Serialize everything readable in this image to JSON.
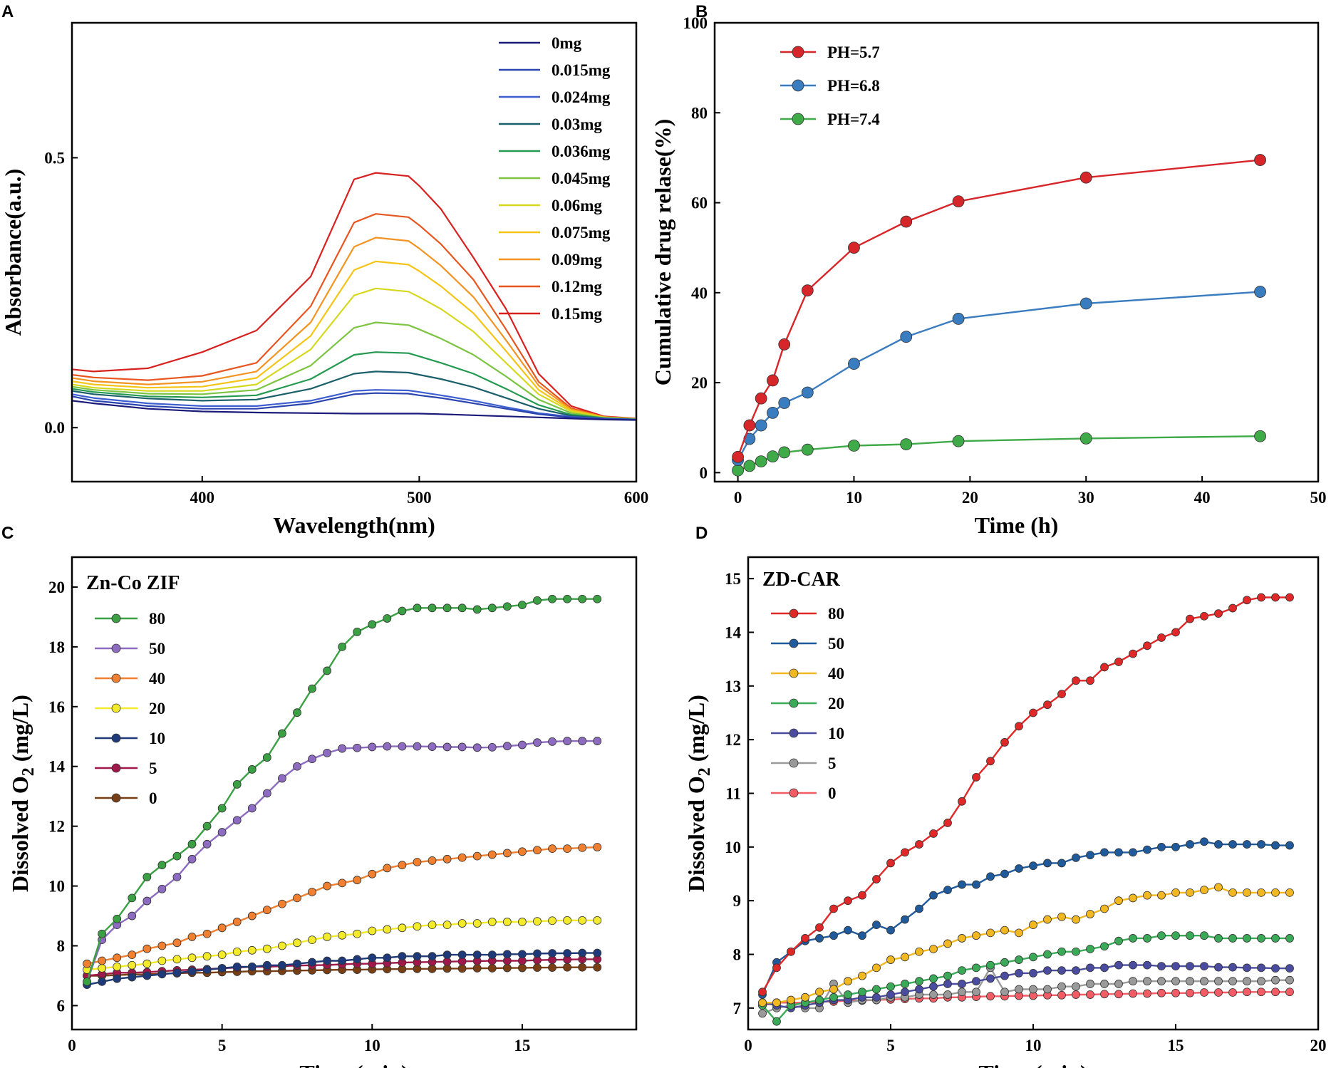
{
  "chart_data": [
    {
      "panel": "A",
      "type": "line",
      "title": "",
      "xlabel": "Wavelength(nm)",
      "ylabel": "Absorbance(a.u.)",
      "xlim": [
        340,
        600
      ],
      "ylim": [
        -0.1,
        0.75
      ],
      "xticks": [
        400,
        500,
        600
      ],
      "yticks": [
        0.0,
        0.5
      ],
      "ytick_labels": [
        "0.0",
        "0.5"
      ],
      "legend_position": "top-right",
      "x": [
        340,
        350,
        375,
        400,
        425,
        450,
        470,
        480,
        495,
        500,
        510,
        525,
        540,
        555,
        570,
        585,
        600
      ],
      "series": [
        {
          "name": "0mg",
          "color": "#1a1a7a",
          "values": [
            0.05,
            0.045,
            0.035,
            0.03,
            0.028,
            0.027,
            0.026,
            0.026,
            0.026,
            0.026,
            0.025,
            0.023,
            0.021,
            0.019,
            0.017,
            0.015,
            0.014
          ]
        },
        {
          "name": "0.015mg",
          "color": "#2a45b0",
          "values": [
            0.058,
            0.05,
            0.04,
            0.035,
            0.035,
            0.045,
            0.062,
            0.064,
            0.063,
            0.06,
            0.055,
            0.045,
            0.035,
            0.025,
            0.019,
            0.016,
            0.015
          ]
        },
        {
          "name": "0.024mg",
          "color": "#3d5fd0",
          "values": [
            0.062,
            0.055,
            0.045,
            0.04,
            0.04,
            0.05,
            0.068,
            0.07,
            0.069,
            0.066,
            0.06,
            0.05,
            0.038,
            0.027,
            0.02,
            0.017,
            0.015
          ]
        },
        {
          "name": "0.03mg",
          "color": "#1b5f6a",
          "values": [
            0.068,
            0.062,
            0.054,
            0.05,
            0.052,
            0.072,
            0.1,
            0.104,
            0.102,
            0.098,
            0.09,
            0.075,
            0.055,
            0.035,
            0.022,
            0.017,
            0.015
          ]
        },
        {
          "name": "0.036mg",
          "color": "#249a50",
          "values": [
            0.072,
            0.066,
            0.058,
            0.056,
            0.06,
            0.09,
            0.135,
            0.14,
            0.138,
            0.132,
            0.12,
            0.1,
            0.072,
            0.042,
            0.024,
            0.018,
            0.015
          ]
        },
        {
          "name": "0.045mg",
          "color": "#7cc442",
          "values": [
            0.076,
            0.07,
            0.063,
            0.062,
            0.07,
            0.115,
            0.185,
            0.195,
            0.19,
            0.182,
            0.165,
            0.135,
            0.095,
            0.052,
            0.027,
            0.018,
            0.016
          ]
        },
        {
          "name": "0.06mg",
          "color": "#d6d820",
          "values": [
            0.08,
            0.074,
            0.068,
            0.068,
            0.08,
            0.145,
            0.245,
            0.258,
            0.252,
            0.242,
            0.22,
            0.178,
            0.12,
            0.062,
            0.03,
            0.019,
            0.016
          ]
        },
        {
          "name": "0.075mg",
          "color": "#f5c418",
          "values": [
            0.086,
            0.08,
            0.074,
            0.076,
            0.092,
            0.17,
            0.292,
            0.308,
            0.302,
            0.29,
            0.262,
            0.212,
            0.142,
            0.07,
            0.032,
            0.019,
            0.016
          ]
        },
        {
          "name": "0.09mg",
          "color": "#f29322",
          "values": [
            0.092,
            0.086,
            0.08,
            0.085,
            0.104,
            0.195,
            0.335,
            0.352,
            0.346,
            0.332,
            0.3,
            0.242,
            0.162,
            0.078,
            0.034,
            0.02,
            0.016
          ]
        },
        {
          "name": "0.12mg",
          "color": "#e8561f",
          "values": [
            0.098,
            0.093,
            0.088,
            0.096,
            0.12,
            0.225,
            0.38,
            0.396,
            0.39,
            0.375,
            0.34,
            0.274,
            0.182,
            0.085,
            0.036,
            0.02,
            0.016
          ]
        },
        {
          "name": "0.15mg",
          "color": "#d7211f",
          "values": [
            0.108,
            0.104,
            0.11,
            0.14,
            0.18,
            0.28,
            0.46,
            0.472,
            0.466,
            0.448,
            0.405,
            0.315,
            0.22,
            0.1,
            0.04,
            0.021,
            0.017
          ]
        }
      ]
    },
    {
      "panel": "B",
      "type": "line",
      "title": "",
      "xlabel": "Time (h)",
      "ylabel": "Cumulative drug relase(%)",
      "xlim": [
        -2,
        50
      ],
      "ylim": [
        -2,
        100
      ],
      "xticks": [
        0,
        10,
        20,
        30,
        40,
        50
      ],
      "yticks": [
        0,
        20,
        40,
        60,
        80,
        100
      ],
      "legend_position": "top-left",
      "x": [
        0,
        1,
        2,
        3,
        4,
        6,
        10,
        14.5,
        19,
        30,
        45
      ],
      "series": [
        {
          "name": "PH=5.7",
          "color": "#d7262a",
          "values": [
            3.5,
            10.5,
            16.5,
            20.5,
            28.5,
            40.5,
            50,
            55.8,
            60.3,
            65.6,
            69.5
          ]
        },
        {
          "name": "PH=6.8",
          "color": "#3a7cc0",
          "values": [
            2.8,
            7.5,
            10.5,
            13.3,
            15.5,
            17.8,
            24.2,
            30.2,
            34.2,
            37.6,
            40.2
          ]
        },
        {
          "name": "PH=7.4",
          "color": "#3faa48",
          "values": [
            0.5,
            1.5,
            2.5,
            3.6,
            4.5,
            5.1,
            6.0,
            6.3,
            7.0,
            7.6,
            8.1
          ]
        }
      ]
    },
    {
      "panel": "C",
      "type": "line",
      "title": "",
      "legend_title": "Zn-Co ZIF",
      "xlabel": "Time (min)",
      "ylabel": "Dissolved O2 (mg/L)",
      "xlim": [
        0,
        18.8
      ],
      "ylim": [
        5.2,
        21
      ],
      "xticks": [
        0,
        5,
        10,
        15
      ],
      "yticks": [
        6,
        8,
        10,
        12,
        14,
        16,
        18,
        20
      ],
      "legend_position": "top-left",
      "x": [
        0.5,
        1,
        1.5,
        2,
        2.5,
        3,
        3.5,
        4,
        4.5,
        5,
        5.5,
        6,
        6.5,
        7,
        7.5,
        8,
        8.5,
        9,
        9.5,
        10,
        10.5,
        11,
        11.5,
        12,
        12.5,
        13,
        13.5,
        14,
        14.5,
        15,
        15.5,
        16,
        16.5,
        17,
        17.5
      ],
      "series": [
        {
          "name": "80",
          "color": "#3aa043",
          "values": [
            6.8,
            8.4,
            8.9,
            9.6,
            10.3,
            10.7,
            11.0,
            11.4,
            12.0,
            12.6,
            13.4,
            13.9,
            14.3,
            15.1,
            15.8,
            16.6,
            17.2,
            18.0,
            18.5,
            18.75,
            18.95,
            19.2,
            19.3,
            19.3,
            19.3,
            19.3,
            19.25,
            19.3,
            19.35,
            19.4,
            19.55,
            19.6,
            19.6,
            19.6,
            19.6
          ]
        },
        {
          "name": "50",
          "color": "#8c6bc0",
          "values": [
            6.8,
            8.2,
            8.7,
            9.0,
            9.5,
            9.9,
            10.3,
            10.9,
            11.4,
            11.8,
            12.2,
            12.6,
            13.1,
            13.6,
            14.0,
            14.25,
            14.45,
            14.6,
            14.62,
            14.65,
            14.67,
            14.67,
            14.67,
            14.66,
            14.65,
            14.65,
            14.63,
            14.64,
            14.68,
            14.72,
            14.8,
            14.83,
            14.85,
            14.85,
            14.85
          ]
        },
        {
          "name": "40",
          "color": "#f08030",
          "values": [
            7.4,
            7.5,
            7.6,
            7.7,
            7.9,
            8.0,
            8.1,
            8.3,
            8.4,
            8.6,
            8.8,
            9.0,
            9.2,
            9.4,
            9.6,
            9.8,
            10.0,
            10.1,
            10.2,
            10.4,
            10.6,
            10.7,
            10.8,
            10.85,
            10.9,
            10.95,
            11.0,
            11.05,
            11.1,
            11.15,
            11.2,
            11.25,
            11.25,
            11.28,
            11.3
          ]
        },
        {
          "name": "20",
          "color": "#f2ea2a",
          "values": [
            7.2,
            7.25,
            7.3,
            7.35,
            7.4,
            7.5,
            7.55,
            7.6,
            7.65,
            7.7,
            7.8,
            7.85,
            7.9,
            8.0,
            8.1,
            8.2,
            8.3,
            8.35,
            8.4,
            8.5,
            8.55,
            8.6,
            8.65,
            8.7,
            8.7,
            8.75,
            8.75,
            8.8,
            8.8,
            8.8,
            8.82,
            8.84,
            8.85,
            8.85,
            8.85
          ]
        },
        {
          "name": "10",
          "color": "#1e3a7a",
          "values": [
            6.7,
            6.8,
            6.9,
            6.95,
            7.0,
            7.05,
            7.1,
            7.15,
            7.2,
            7.25,
            7.3,
            7.3,
            7.35,
            7.35,
            7.4,
            7.45,
            7.5,
            7.5,
            7.55,
            7.6,
            7.6,
            7.65,
            7.65,
            7.65,
            7.7,
            7.7,
            7.7,
            7.7,
            7.72,
            7.72,
            7.74,
            7.75,
            7.75,
            7.76,
            7.76
          ]
        },
        {
          "name": "5",
          "color": "#a0184a",
          "values": [
            7.0,
            7.05,
            7.1,
            7.1,
            7.12,
            7.15,
            7.18,
            7.2,
            7.22,
            7.25,
            7.27,
            7.3,
            7.3,
            7.32,
            7.34,
            7.35,
            7.36,
            7.38,
            7.4,
            7.4,
            7.42,
            7.44,
            7.45,
            7.46,
            7.47,
            7.48,
            7.49,
            7.5,
            7.5,
            7.5,
            7.52,
            7.53,
            7.54,
            7.55,
            7.55
          ]
        },
        {
          "name": "0",
          "color": "#7a3e14",
          "values": [
            7.0,
            7.0,
            7.02,
            7.04,
            7.05,
            7.07,
            7.08,
            7.1,
            7.1,
            7.12,
            7.13,
            7.15,
            7.15,
            7.16,
            7.17,
            7.18,
            7.19,
            7.2,
            7.2,
            7.21,
            7.22,
            7.22,
            7.23,
            7.23,
            7.24,
            7.24,
            7.25,
            7.25,
            7.26,
            7.26,
            7.27,
            7.27,
            7.28,
            7.28,
            7.28
          ]
        }
      ]
    },
    {
      "panel": "D",
      "type": "line",
      "title": "",
      "legend_title": "ZD-CAR",
      "xlabel": "Time (min)",
      "ylabel": "Dissolved O2 (mg/L)",
      "xlim": [
        0,
        20
      ],
      "ylim": [
        6.6,
        15.4
      ],
      "xticks": [
        0,
        5,
        10,
        15,
        20
      ],
      "yticks": [
        7,
        8,
        9,
        10,
        11,
        12,
        13,
        14,
        15
      ],
      "legend_position": "top-left",
      "x": [
        0.5,
        1,
        1.5,
        2,
        2.5,
        3,
        3.5,
        4,
        4.5,
        5,
        5.5,
        6,
        6.5,
        7,
        7.5,
        8,
        8.5,
        9,
        9.5,
        10,
        10.5,
        11,
        11.5,
        12,
        12.5,
        13,
        13.5,
        14,
        14.5,
        15,
        15.5,
        16,
        16.5,
        17,
        17.5,
        18,
        18.5,
        19
      ],
      "series": [
        {
          "name": "80",
          "color": "#e02828",
          "values": [
            7.3,
            7.75,
            8.05,
            8.3,
            8.5,
            8.85,
            9.0,
            9.1,
            9.4,
            9.7,
            9.9,
            10.05,
            10.25,
            10.45,
            10.85,
            11.3,
            11.6,
            11.95,
            12.25,
            12.5,
            12.65,
            12.85,
            13.1,
            13.1,
            13.35,
            13.45,
            13.6,
            13.75,
            13.9,
            14.0,
            14.25,
            14.3,
            14.35,
            14.45,
            14.6,
            14.65,
            14.65,
            14.65
          ]
        },
        {
          "name": "50",
          "color": "#1e5a9c",
          "values": [
            7.25,
            7.85,
            8.05,
            8.25,
            8.3,
            8.35,
            8.45,
            8.35,
            8.55,
            8.45,
            8.65,
            8.85,
            9.1,
            9.2,
            9.3,
            9.3,
            9.45,
            9.5,
            9.6,
            9.65,
            9.7,
            9.7,
            9.8,
            9.85,
            9.9,
            9.9,
            9.9,
            9.95,
            10.0,
            10.0,
            10.05,
            10.1,
            10.05,
            10.05,
            10.05,
            10.05,
            10.03,
            10.03
          ]
        },
        {
          "name": "40",
          "color": "#f2b822",
          "values": [
            7.1,
            7.1,
            7.15,
            7.2,
            7.3,
            7.35,
            7.5,
            7.6,
            7.75,
            7.9,
            7.95,
            8.05,
            8.1,
            8.2,
            8.3,
            8.35,
            8.4,
            8.45,
            8.4,
            8.55,
            8.65,
            8.7,
            8.65,
            8.75,
            8.85,
            9.0,
            9.05,
            9.1,
            9.1,
            9.15,
            9.15,
            9.2,
            9.25,
            9.15,
            9.15,
            9.15,
            9.15,
            9.15
          ]
        },
        {
          "name": "20",
          "color": "#3aaa58",
          "values": [
            7.05,
            6.75,
            7.05,
            7.1,
            7.15,
            7.2,
            7.25,
            7.3,
            7.35,
            7.4,
            7.45,
            7.5,
            7.55,
            7.6,
            7.7,
            7.75,
            7.8,
            7.85,
            7.9,
            7.95,
            8.0,
            8.05,
            8.05,
            8.1,
            8.15,
            8.25,
            8.3,
            8.3,
            8.35,
            8.35,
            8.35,
            8.35,
            8.3,
            8.3,
            8.3,
            8.3,
            8.3,
            8.3
          ]
        },
        {
          "name": "10",
          "color": "#4a4ca0",
          "values": [
            7.1,
            7.05,
            7.0,
            7.05,
            7.1,
            7.15,
            7.15,
            7.2,
            7.2,
            7.25,
            7.3,
            7.35,
            7.4,
            7.45,
            7.45,
            7.5,
            7.55,
            7.6,
            7.65,
            7.65,
            7.7,
            7.7,
            7.7,
            7.75,
            7.75,
            7.8,
            7.8,
            7.8,
            7.78,
            7.78,
            7.78,
            7.78,
            7.76,
            7.76,
            7.75,
            7.75,
            7.74,
            7.74
          ]
        },
        {
          "name": "5",
          "color": "#9a9a9a",
          "values": [
            6.9,
            7.0,
            7.05,
            7.0,
            7.0,
            7.45,
            7.1,
            7.15,
            7.15,
            7.2,
            7.2,
            7.25,
            7.25,
            7.25,
            7.3,
            7.3,
            7.75,
            7.3,
            7.35,
            7.35,
            7.35,
            7.4,
            7.4,
            7.45,
            7.45,
            7.45,
            7.5,
            7.5,
            7.5,
            7.5,
            7.5,
            7.5,
            7.5,
            7.5,
            7.5,
            7.5,
            7.52,
            7.52
          ]
        },
        {
          "name": "0",
          "color": "#f25c64",
          "values": [
            7.05,
            7.1,
            7.1,
            7.1,
            7.12,
            7.12,
            7.14,
            7.14,
            7.15,
            7.16,
            7.17,
            7.18,
            7.18,
            7.2,
            7.2,
            7.21,
            7.22,
            7.22,
            7.23,
            7.23,
            7.24,
            7.24,
            7.25,
            7.25,
            7.26,
            7.26,
            7.27,
            7.27,
            7.28,
            7.28,
            7.28,
            7.29,
            7.29,
            7.29,
            7.3,
            7.3,
            7.3,
            7.3
          ]
        }
      ]
    }
  ]
}
